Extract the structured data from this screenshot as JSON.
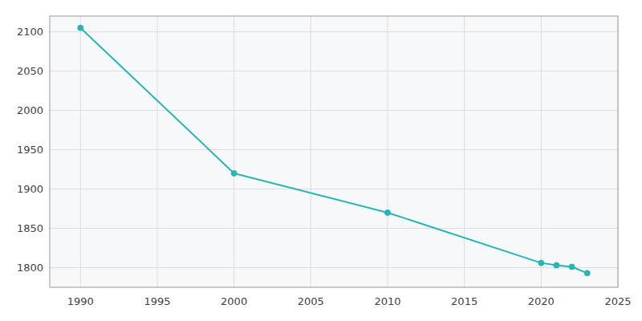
{
  "chart_data": {
    "type": "line",
    "x": [
      1990,
      2000,
      2010,
      2020,
      2021,
      2022,
      2023
    ],
    "values": [
      2105,
      1920,
      1870,
      1806,
      1803,
      1801,
      1793
    ],
    "color": "#2ab5b5",
    "marker": "circle",
    "xlim": [
      1988,
      2025
    ],
    "ylim": [
      1775,
      2120
    ],
    "xticks": [
      1990,
      1995,
      2000,
      2005,
      2010,
      2015,
      2020,
      2025
    ],
    "yticks": [
      1800,
      1850,
      1900,
      1950,
      2000,
      2050,
      2100
    ],
    "grid": true
  }
}
